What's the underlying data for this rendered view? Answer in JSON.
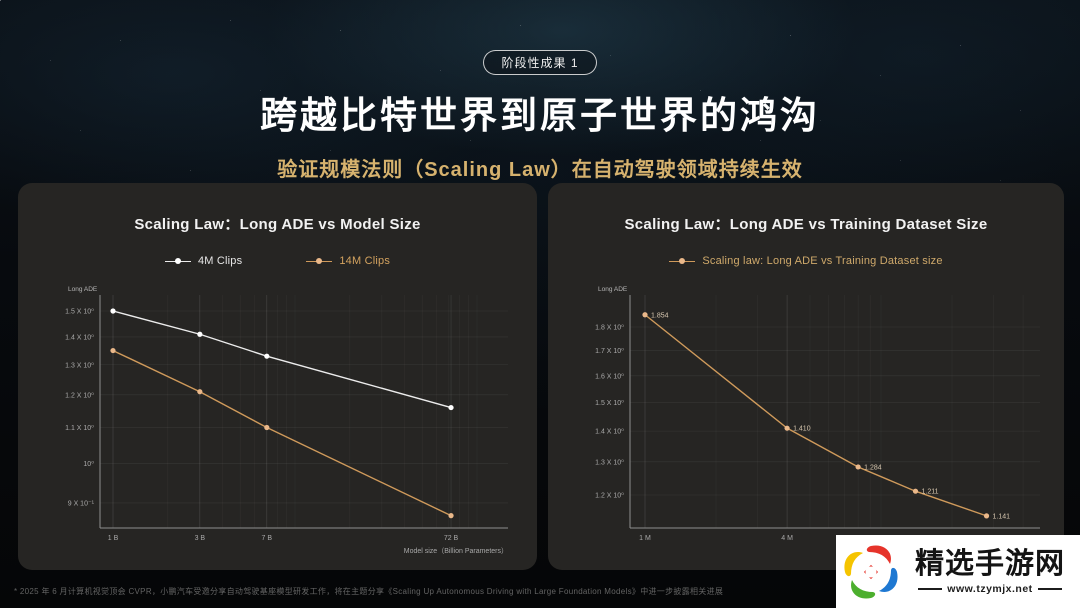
{
  "badge": {
    "label": "阶段性成果 1"
  },
  "title": "跨越比特世界到原子世界的鸿沟",
  "subtitle": "验证规模法则（Scaling Law）在自动驾驶领域持续生效",
  "footnote": "* 2025 年 6 月计算机视觉顶会 CVPR，小鹏汽车受邀分享自动驾驶基座模型研发工作，将在主题分享《Scaling Up Autonomous Driving with Large Foundation Models》中进一步披露相关进展",
  "watermark": {
    "site_name": "精选手游网",
    "site_url": "www.tzymjx.net"
  },
  "colors": {
    "accent_gold": "#d6b26e",
    "panel_bg": "#262523",
    "series_white": "#ececec",
    "series_orange": "#cf9a5b",
    "axis_text": "#a9a9a9"
  },
  "chart_data": [
    {
      "type": "line",
      "title": "Scaling Law：Long ADE vs Model Size",
      "xlabel": "Model size（Billion Parameters）",
      "ylabel": "Long ADE",
      "x_scale": "log",
      "y_scale": "log",
      "xlim": [
        1,
        148
      ],
      "ylim": [
        0.85,
        1.56
      ],
      "legend_position": "top",
      "grid": true,
      "x_ticks": [
        {
          "v": 1,
          "label": "1 B"
        },
        {
          "v": 3,
          "label": "3 B"
        },
        {
          "v": 7,
          "label": "7 B"
        },
        {
          "v": 72,
          "label": "72 B"
        }
      ],
      "y_ticks": [
        {
          "v": 1.5,
          "label": "1.5 X 10⁰"
        },
        {
          "v": 1.4,
          "label": "1.4 X 10⁰"
        },
        {
          "v": 1.3,
          "label": "1.3 X 10⁰"
        },
        {
          "v": 1.2,
          "label": "1.2 X 10⁰"
        },
        {
          "v": 1.1,
          "label": "1.1 X 10⁰"
        },
        {
          "v": 1.0,
          "label": "10⁰"
        },
        {
          "v": 0.9,
          "label": "9 X 10⁻¹"
        }
      ],
      "series": [
        {
          "name": "4M Clips",
          "color": "#ececec",
          "dot_color": "#ffffff",
          "label_color": "#e6e6e6",
          "x": [
            1,
            3,
            7,
            72
          ],
          "values": [
            1.5,
            1.41,
            1.33,
            1.16
          ]
        },
        {
          "name": "14M Clips",
          "color": "#cf9a5b",
          "dot_color": "#eab88a",
          "label_color": "#d4a35f",
          "x": [
            1,
            3,
            7,
            72
          ],
          "values": [
            1.35,
            1.21,
            1.1,
            0.87
          ]
        }
      ]
    },
    {
      "type": "line",
      "title": "Scaling Law：Long ADE vs Training Dataset Size",
      "xlabel": "",
      "ylabel": "Long ADE",
      "x_scale": "log",
      "y_scale": "log",
      "xlim": [
        1,
        47
      ],
      "ylim": [
        1.1,
        1.92
      ],
      "legend_position": "top",
      "grid": true,
      "x_ticks": [
        {
          "v": 1,
          "label": "1 M"
        },
        {
          "v": 4,
          "label": "4 M"
        }
      ],
      "y_ticks": [
        {
          "v": 1.8,
          "label": "1.8 X 10⁰"
        },
        {
          "v": 1.7,
          "label": "1.7 X 10⁰"
        },
        {
          "v": 1.6,
          "label": "1.6 X 10⁰"
        },
        {
          "v": 1.5,
          "label": "1.5 X 10⁰"
        },
        {
          "v": 1.4,
          "label": "1.4 X 10⁰"
        },
        {
          "v": 1.3,
          "label": "1.3 X 10⁰"
        },
        {
          "v": 1.2,
          "label": "1.2 X 10⁰"
        }
      ],
      "series": [
        {
          "name": "Scaling law: Long ADE vs Training Dataset size",
          "color": "#cf9a5b",
          "dot_color": "#eab88a",
          "label_color": "#cfa96b",
          "x": [
            1,
            4,
            8,
            14,
            28
          ],
          "values": [
            1.854,
            1.41,
            1.284,
            1.211,
            1.141
          ],
          "point_labels": [
            "1.854",
            "1.410",
            "1.284",
            "1.211",
            "1.141"
          ]
        }
      ]
    }
  ]
}
